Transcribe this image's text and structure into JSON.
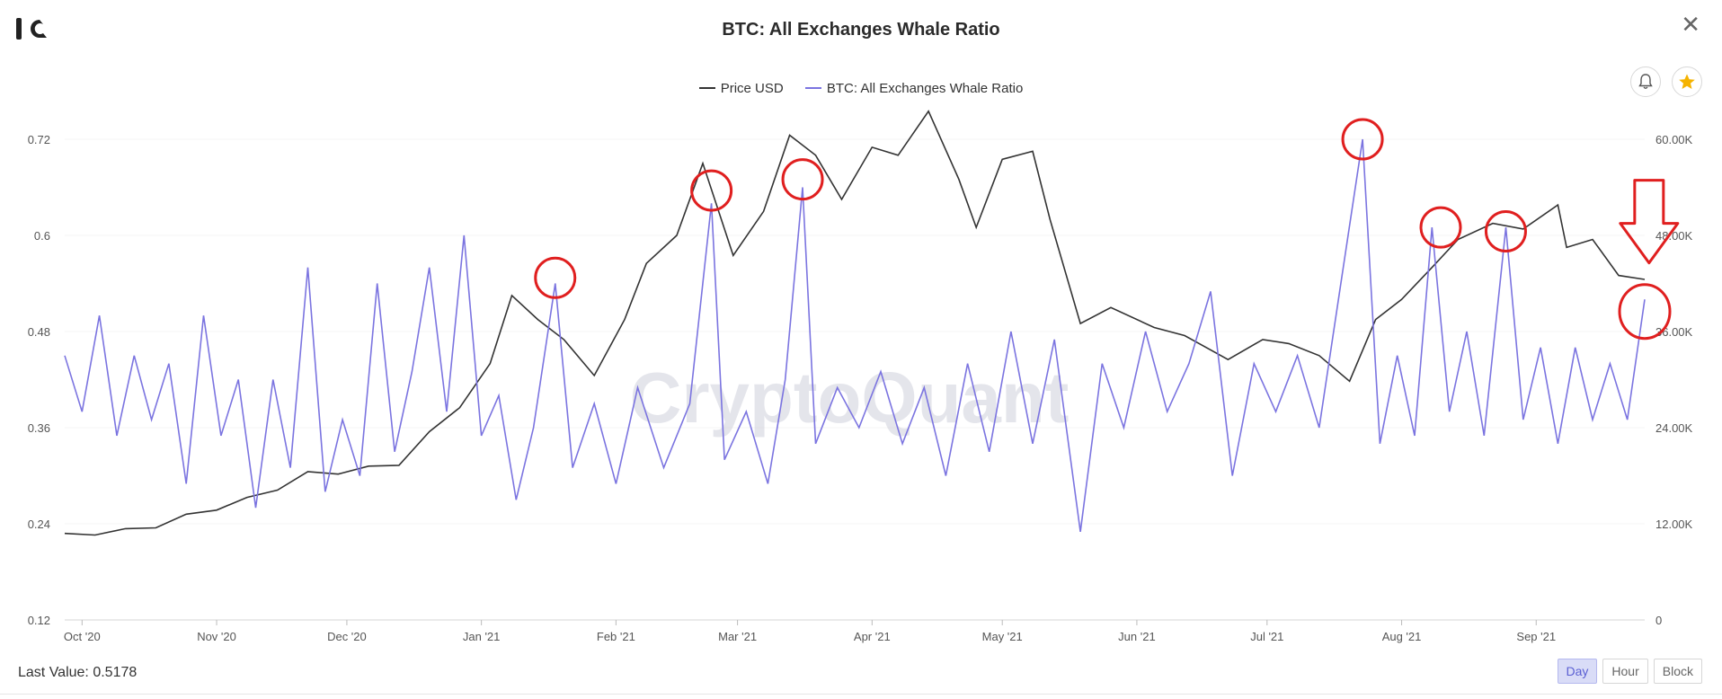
{
  "window": {
    "title": "BTC: All Exchanges Whale Ratio"
  },
  "watermark": "CryptoQuant",
  "legend": [
    {
      "name": "Price USD",
      "color": "#333333"
    },
    {
      "name": "BTC: All Exchanges Whale Ratio",
      "color": "#7b74e0"
    }
  ],
  "footer": {
    "last_value_label": "Last Value:",
    "last_value": "0.5178",
    "resolutions": [
      "Day",
      "Hour",
      "Block"
    ],
    "active_resolution": "Day"
  },
  "icons": {
    "logo": "cryptoquant-logo",
    "close": "close-icon",
    "bell": "bell-icon",
    "star": "star-icon"
  },
  "accent": {
    "star": "#f5b300",
    "annotation": "#e01f1f"
  },
  "chart_data": {
    "type": "line",
    "title": "BTC: All Exchanges Whale Ratio",
    "x_range": [
      "2020-09-27",
      "2021-09-26"
    ],
    "x_ticks": [
      {
        "date": "2020-10-01",
        "label": "Oct '20"
      },
      {
        "date": "2020-11-01",
        "label": "Nov '20"
      },
      {
        "date": "2020-12-01",
        "label": "Dec '20"
      },
      {
        "date": "2021-01-01",
        "label": "Jan '21"
      },
      {
        "date": "2021-02-01",
        "label": "Feb '21"
      },
      {
        "date": "2021-03-01",
        "label": "Mar '21"
      },
      {
        "date": "2021-04-01",
        "label": "Apr '21"
      },
      {
        "date": "2021-05-01",
        "label": "May '21"
      },
      {
        "date": "2021-06-01",
        "label": "Jun '21"
      },
      {
        "date": "2021-07-01",
        "label": "Jul '21"
      },
      {
        "date": "2021-08-01",
        "label": "Aug '21"
      },
      {
        "date": "2021-09-01",
        "label": "Sep '21"
      }
    ],
    "y_left": {
      "ticks": [
        "0.12",
        "0.24",
        "0.36",
        "0.48",
        "0.6",
        "0.72"
      ],
      "range": [
        0.12,
        0.72
      ]
    },
    "y_right": {
      "ticks": [
        "0",
        "12.00K",
        "24.00K",
        "36.00K",
        "48.00K",
        "60.00K"
      ],
      "range": [
        0,
        60000
      ]
    },
    "grid": true,
    "legend_position": "top-center",
    "series": [
      {
        "name": "Price USD",
        "axis": "right",
        "color": "#333333",
        "points": [
          [
            "2020-09-27",
            10800
          ],
          [
            "2020-10-04",
            10600
          ],
          [
            "2020-10-11",
            11400
          ],
          [
            "2020-10-18",
            11500
          ],
          [
            "2020-10-25",
            13200
          ],
          [
            "2020-11-01",
            13700
          ],
          [
            "2020-11-08",
            15300
          ],
          [
            "2020-11-15",
            16200
          ],
          [
            "2020-11-22",
            18500
          ],
          [
            "2020-11-29",
            18200
          ],
          [
            "2020-12-06",
            19200
          ],
          [
            "2020-12-13",
            19300
          ],
          [
            "2020-12-20",
            23500
          ],
          [
            "2020-12-27",
            26500
          ],
          [
            "2021-01-03",
            32000
          ],
          [
            "2021-01-08",
            40500
          ],
          [
            "2021-01-14",
            37500
          ],
          [
            "2021-01-20",
            35000
          ],
          [
            "2021-01-27",
            30500
          ],
          [
            "2021-02-03",
            37500
          ],
          [
            "2021-02-08",
            44500
          ],
          [
            "2021-02-15",
            48000
          ],
          [
            "2021-02-21",
            57000
          ],
          [
            "2021-02-28",
            45500
          ],
          [
            "2021-03-07",
            51000
          ],
          [
            "2021-03-13",
            60500
          ],
          [
            "2021-03-19",
            58000
          ],
          [
            "2021-03-25",
            52500
          ],
          [
            "2021-04-01",
            59000
          ],
          [
            "2021-04-07",
            58000
          ],
          [
            "2021-04-14",
            63500
          ],
          [
            "2021-04-21",
            55000
          ],
          [
            "2021-04-25",
            49000
          ],
          [
            "2021-05-01",
            57500
          ],
          [
            "2021-05-08",
            58500
          ],
          [
            "2021-05-12",
            50000
          ],
          [
            "2021-05-19",
            37000
          ],
          [
            "2021-05-26",
            39000
          ],
          [
            "2021-06-05",
            36500
          ],
          [
            "2021-06-12",
            35500
          ],
          [
            "2021-06-22",
            32500
          ],
          [
            "2021-06-30",
            35000
          ],
          [
            "2021-07-06",
            34500
          ],
          [
            "2021-07-13",
            33000
          ],
          [
            "2021-07-20",
            29800
          ],
          [
            "2021-07-26",
            37500
          ],
          [
            "2021-08-01",
            40000
          ],
          [
            "2021-08-08",
            44000
          ],
          [
            "2021-08-14",
            47500
          ],
          [
            "2021-08-22",
            49500
          ],
          [
            "2021-08-29",
            48800
          ],
          [
            "2021-09-06",
            51800
          ],
          [
            "2021-09-08",
            46500
          ],
          [
            "2021-09-14",
            47500
          ],
          [
            "2021-09-20",
            43000
          ],
          [
            "2021-09-26",
            42500
          ]
        ]
      },
      {
        "name": "BTC: All Exchanges Whale Ratio",
        "axis": "left",
        "color": "#7b74e0",
        "points": [
          [
            "2020-09-27",
            0.45
          ],
          [
            "2020-10-01",
            0.38
          ],
          [
            "2020-10-05",
            0.5
          ],
          [
            "2020-10-09",
            0.35
          ],
          [
            "2020-10-13",
            0.45
          ],
          [
            "2020-10-17",
            0.37
          ],
          [
            "2020-10-21",
            0.44
          ],
          [
            "2020-10-25",
            0.29
          ],
          [
            "2020-10-29",
            0.5
          ],
          [
            "2020-11-02",
            0.35
          ],
          [
            "2020-11-06",
            0.42
          ],
          [
            "2020-11-10",
            0.26
          ],
          [
            "2020-11-14",
            0.42
          ],
          [
            "2020-11-18",
            0.31
          ],
          [
            "2020-11-22",
            0.56
          ],
          [
            "2020-11-26",
            0.28
          ],
          [
            "2020-11-30",
            0.37
          ],
          [
            "2020-12-04",
            0.3
          ],
          [
            "2020-12-08",
            0.54
          ],
          [
            "2020-12-12",
            0.33
          ],
          [
            "2020-12-16",
            0.43
          ],
          [
            "2020-12-20",
            0.56
          ],
          [
            "2020-12-24",
            0.38
          ],
          [
            "2020-12-28",
            0.6
          ],
          [
            "2021-01-01",
            0.35
          ],
          [
            "2021-01-05",
            0.4
          ],
          [
            "2021-01-09",
            0.27
          ],
          [
            "2021-01-13",
            0.36
          ],
          [
            "2021-01-18",
            0.54
          ],
          [
            "2021-01-22",
            0.31
          ],
          [
            "2021-01-27",
            0.39
          ],
          [
            "2021-02-01",
            0.29
          ],
          [
            "2021-02-06",
            0.41
          ],
          [
            "2021-02-12",
            0.31
          ],
          [
            "2021-02-18",
            0.39
          ],
          [
            "2021-02-23",
            0.64
          ],
          [
            "2021-02-26",
            0.32
          ],
          [
            "2021-03-03",
            0.38
          ],
          [
            "2021-03-08",
            0.29
          ],
          [
            "2021-03-12",
            0.42
          ],
          [
            "2021-03-16",
            0.66
          ],
          [
            "2021-03-19",
            0.34
          ],
          [
            "2021-03-24",
            0.41
          ],
          [
            "2021-03-29",
            0.36
          ],
          [
            "2021-04-03",
            0.43
          ],
          [
            "2021-04-08",
            0.34
          ],
          [
            "2021-04-13",
            0.41
          ],
          [
            "2021-04-18",
            0.3
          ],
          [
            "2021-04-23",
            0.44
          ],
          [
            "2021-04-28",
            0.33
          ],
          [
            "2021-05-03",
            0.48
          ],
          [
            "2021-05-08",
            0.34
          ],
          [
            "2021-05-13",
            0.47
          ],
          [
            "2021-05-19",
            0.23
          ],
          [
            "2021-05-24",
            0.44
          ],
          [
            "2021-05-29",
            0.36
          ],
          [
            "2021-06-03",
            0.48
          ],
          [
            "2021-06-08",
            0.38
          ],
          [
            "2021-06-13",
            0.44
          ],
          [
            "2021-06-18",
            0.53
          ],
          [
            "2021-06-23",
            0.3
          ],
          [
            "2021-06-28",
            0.44
          ],
          [
            "2021-07-03",
            0.38
          ],
          [
            "2021-07-08",
            0.45
          ],
          [
            "2021-07-13",
            0.36
          ],
          [
            "2021-07-18",
            0.54
          ],
          [
            "2021-07-23",
            0.72
          ],
          [
            "2021-07-27",
            0.34
          ],
          [
            "2021-07-31",
            0.45
          ],
          [
            "2021-08-04",
            0.35
          ],
          [
            "2021-08-08",
            0.61
          ],
          [
            "2021-08-12",
            0.38
          ],
          [
            "2021-08-16",
            0.48
          ],
          [
            "2021-08-20",
            0.35
          ],
          [
            "2021-08-25",
            0.61
          ],
          [
            "2021-08-29",
            0.37
          ],
          [
            "2021-09-02",
            0.46
          ],
          [
            "2021-09-06",
            0.34
          ],
          [
            "2021-09-10",
            0.46
          ],
          [
            "2021-09-14",
            0.37
          ],
          [
            "2021-09-18",
            0.44
          ],
          [
            "2021-09-22",
            0.37
          ],
          [
            "2021-09-26",
            0.52
          ]
        ]
      }
    ],
    "annotations": [
      {
        "type": "ellipse",
        "date": "2021-01-18",
        "value": 0.547
      },
      {
        "type": "ellipse",
        "date": "2021-02-23",
        "value": 0.656
      },
      {
        "type": "ellipse",
        "date": "2021-03-16",
        "value": 0.67
      },
      {
        "type": "ellipse",
        "date": "2021-07-23",
        "value": 0.72
      },
      {
        "type": "ellipse",
        "date": "2021-08-10",
        "value": 0.61
      },
      {
        "type": "ellipse",
        "date": "2021-08-25",
        "value": 0.605
      },
      {
        "type": "ellipse",
        "date": "2021-09-26",
        "value": 0.505
      },
      {
        "type": "arrow-down",
        "date": "2021-09-27",
        "value": 0.615
      }
    ]
  }
}
